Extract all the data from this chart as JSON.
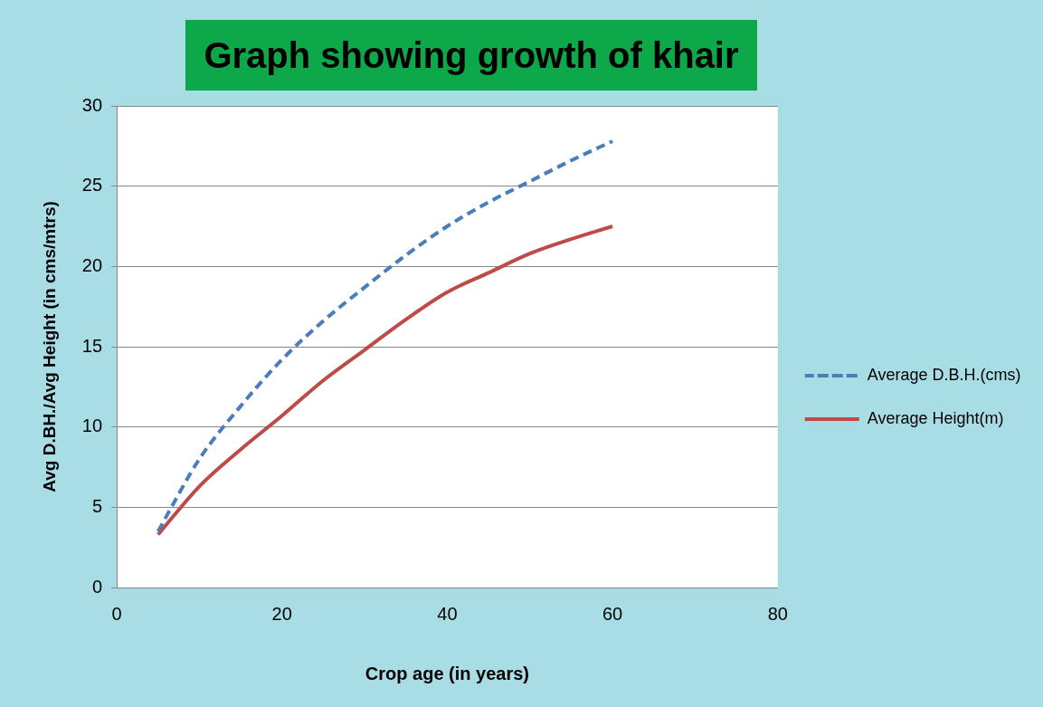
{
  "chart_data": {
    "type": "line",
    "title": "Graph showing growth of khair",
    "xlabel": "Crop age (in years)",
    "ylabel": "Avg D.BH./Avg Height (in cms/mtrs)",
    "x": [
      5,
      10,
      15,
      20,
      25,
      30,
      35,
      40,
      45,
      50,
      55,
      60
    ],
    "series": [
      {
        "name": "Average D.B.H.(cms)",
        "color": "#4a7ebb",
        "line_style": "dashed",
        "values": [
          3.5,
          8,
          11.3,
          14.2,
          16.6,
          18.7,
          20.7,
          22.5,
          24,
          25.3,
          26.6,
          27.8
        ]
      },
      {
        "name": "Average Height(m)",
        "color": "#be4b48",
        "line_style": "solid",
        "values": [
          3.3,
          6.3,
          8.6,
          10.7,
          12.9,
          14.8,
          16.7,
          18.4,
          19.6,
          20.8,
          21.7,
          22.5
        ]
      }
    ],
    "xlim": [
      0,
      80
    ],
    "xticks": [
      0,
      20,
      40,
      60,
      80
    ],
    "ylim": [
      0,
      30
    ],
    "yticks": [
      0,
      5,
      10,
      15,
      20,
      25,
      30
    ],
    "grid": "y",
    "legend": "right",
    "marker": "none"
  }
}
